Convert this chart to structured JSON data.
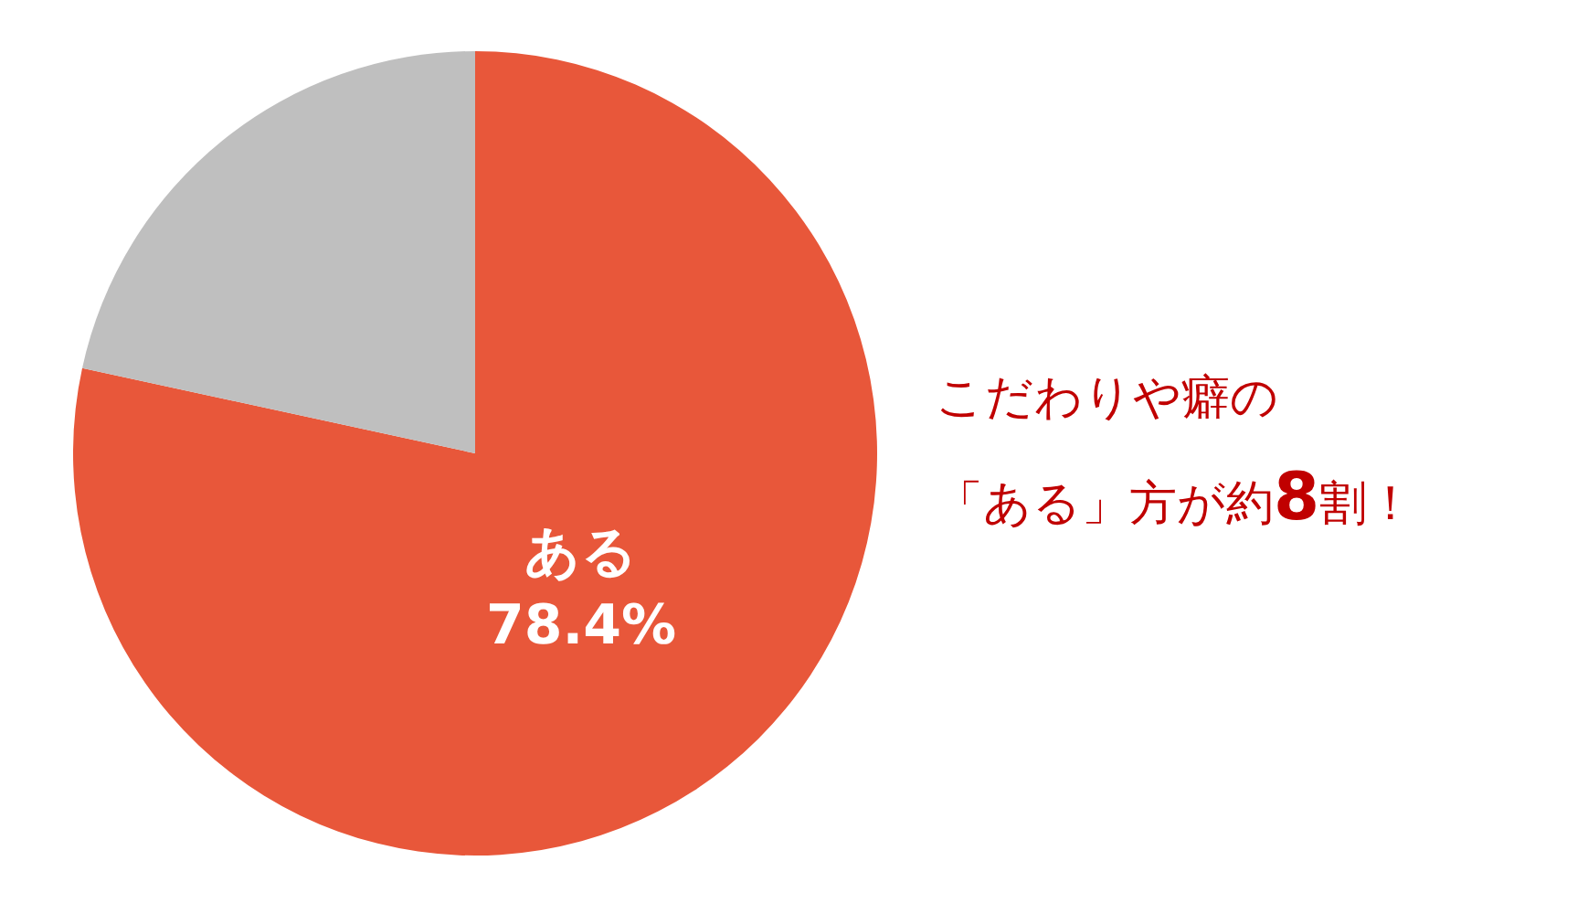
{
  "chart_data": {
    "type": "pie",
    "categories": [
      "ある",
      null
    ],
    "values": [
      78.4,
      21.6
    ],
    "colors": [
      "#e8573a",
      "#bfbfbf"
    ],
    "value_labels": [
      "78.4%",
      null
    ],
    "annotations": [
      "こだわりや癖の",
      "「ある」方が約8割！"
    ]
  }
}
